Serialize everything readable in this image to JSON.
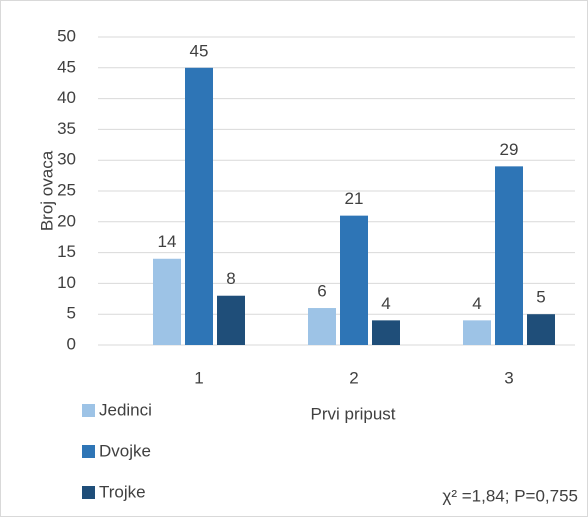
{
  "chart_data": {
    "type": "bar",
    "y_label": "Broj ovaca",
    "x_label": "Prvi pripust",
    "annotation": "χ² =1,84; P=0,755",
    "categories": [
      "1",
      "2",
      "3"
    ],
    "series": [
      {
        "name": "Jedinci",
        "color": "#9dc3e6",
        "values": [
          14,
          6,
          4
        ]
      },
      {
        "name": "Dvojke",
        "color": "#2e75b6",
        "values": [
          45,
          21,
          29
        ]
      },
      {
        "name": "Trojke",
        "color": "#1f4e79",
        "values": [
          8,
          4,
          5
        ]
      }
    ],
    "ylim": [
      0,
      50
    ],
    "yticks": [
      0,
      5,
      10,
      15,
      20,
      25,
      30,
      35,
      40,
      45,
      50
    ],
    "grid": true,
    "legend": "bottom-left"
  }
}
